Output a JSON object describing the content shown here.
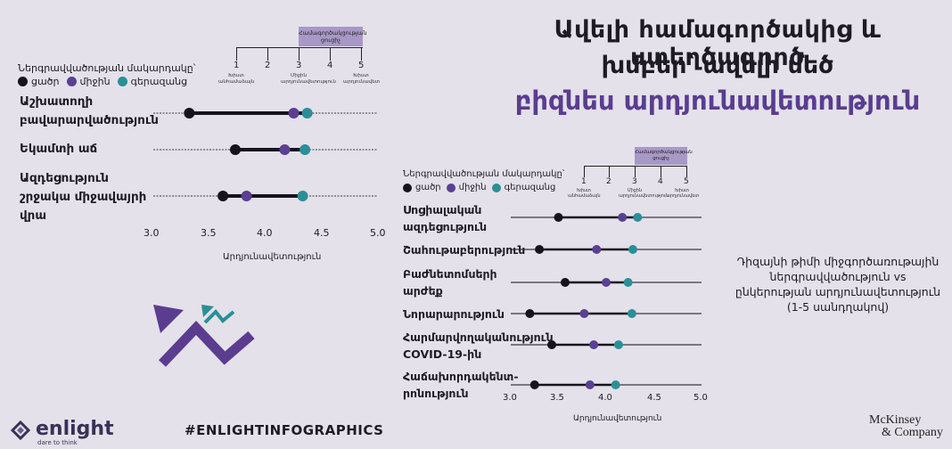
{
  "colors": {
    "low": "#15131b",
    "medium": "#5b3f92",
    "high": "#2a8f96",
    "purple": "#5a3d8f",
    "box": "#a898c6"
  },
  "title": {
    "line1": "Ավելի համագործակից և ստեղծագործ",
    "line2": "խմբեր՝ ավելի մեծ",
    "line3": "բիզնես արդյունավետություն"
  },
  "legend": {
    "title": "Ներգրավվածության մակարդակը՝",
    "low": "ցածր",
    "medium": "միջին",
    "high": "գերազանց"
  },
  "scale": {
    "numbers": [
      "1",
      "2",
      "3",
      "4",
      "5"
    ],
    "cap_left": "Խիստ անհամաձայն",
    "cap_mid": "Միջին արդյունավետություն",
    "cap_right": "Խիստ արդյունավետ",
    "box_label": "Համագործակցության ցուցիչ"
  },
  "description": "Դիզայնի թիմի միջգործառութային ներգրավվածություն vs ընկերության արդյունավետություն (1-5 սանդղակով)",
  "footer": {
    "hashtag": "#ENLIGHTINFOGRAPHICS",
    "brand": "enlight",
    "brand_sub": "dare to think",
    "mckinsey1": "McKinsey",
    "mckinsey2": "& Company"
  },
  "chart_data": [
    {
      "type": "dot-range",
      "xlabel": "Արդյունավետություն",
      "xlim": [
        3.0,
        5.0
      ],
      "ticks": [
        "3.0",
        "3.5",
        "4.0",
        "4.5",
        "5.0"
      ],
      "series_names": [
        "ցածր",
        "միջին",
        "գերազանց"
      ],
      "rows": [
        {
          "label": [
            "Աշխատողի",
            "բավարարվածություն"
          ],
          "low": 3.32,
          "medium": 4.25,
          "high": 4.37
        },
        {
          "label": [
            "Եկամտի աճ"
          ],
          "low": 3.73,
          "medium": 4.17,
          "high": 4.35
        },
        {
          "label": [
            "Ազդեցություն",
            "շրջակա միջավայրի",
            "վրա"
          ],
          "low": 3.62,
          "medium": 3.83,
          "high": 4.33
        }
      ]
    },
    {
      "type": "dot-range",
      "xlabel": "Արդյունավետություն",
      "xlim": [
        3.0,
        5.0
      ],
      "ticks": [
        "3.0",
        "3.5",
        "4.0",
        "4.5",
        "5.0"
      ],
      "series_names": [
        "ցածր",
        "միջին",
        "գերազանց"
      ],
      "rows": [
        {
          "label": [
            "Սոցիալական",
            "ազդեցություն"
          ],
          "low": 3.5,
          "medium": 4.17,
          "high": 4.33
        },
        {
          "label": [
            "Շահութաբերություն"
          ],
          "low": 3.3,
          "medium": 3.9,
          "high": 4.28
        },
        {
          "label": [
            "Բաժնետոմսերի",
            "արժեք"
          ],
          "low": 3.57,
          "medium": 4.0,
          "high": 4.23
        },
        {
          "label": [
            "Նորարարություն"
          ],
          "low": 3.2,
          "medium": 3.77,
          "high": 4.27
        },
        {
          "label": [
            "Հարմարվողականություն",
            "COVID-19-ին"
          ],
          "low": 3.43,
          "medium": 3.87,
          "high": 4.13
        },
        {
          "label": [
            "Հաճախորդակենտ-",
            "րոնություն"
          ],
          "low": 3.25,
          "medium": 3.83,
          "high": 4.1
        }
      ]
    }
  ]
}
